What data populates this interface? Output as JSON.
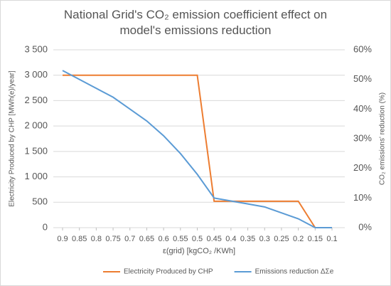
{
  "chart_data": {
    "type": "line",
    "title": "National Grid's CO₂ emission coefficient effect on model's emissions reduction",
    "x_label": "ε(grid) [kgCO₂ /KWh]",
    "y_label": "Electricity Produced by CHP [MWh(e)/year]",
    "y2_label": "CO₂ emissions' reduction (%)",
    "x": [
      0.9,
      0.85,
      0.8,
      0.75,
      0.7,
      0.65,
      0.6,
      0.55,
      0.5,
      0.45,
      0.4,
      0.35,
      0.3,
      0.25,
      0.2,
      0.15,
      0.1
    ],
    "xlim": [
      0.9,
      0.1
    ],
    "xticks": [
      0.9,
      0.85,
      0.8,
      0.75,
      0.7,
      0.65,
      0.6,
      0.55,
      0.5,
      0.45,
      0.4,
      0.35,
      0.3,
      0.25,
      0.2,
      0.15,
      0.1
    ],
    "ylim": [
      0,
      3500
    ],
    "yticks": [
      0,
      500,
      {
        "value": 1000,
        "label": "1 000"
      },
      {
        "value": 1500,
        "label": "1 500"
      },
      {
        "value": 2000,
        "label": "2 000"
      },
      {
        "value": 2500,
        "label": "2 500"
      },
      {
        "value": 3000,
        "label": "3 000"
      },
      {
        "value": 3500,
        "label": "3 500"
      }
    ],
    "y2lim": [
      0,
      60
    ],
    "y2ticks": [
      {
        "value": 0,
        "label": "0%"
      },
      {
        "value": 10,
        "label": "10%"
      },
      {
        "value": 20,
        "label": "20%"
      },
      {
        "value": 30,
        "label": "30%"
      },
      {
        "value": 40,
        "label": "40%"
      },
      {
        "value": 50,
        "label": "50%"
      },
      {
        "value": 60,
        "label": "60%"
      }
    ],
    "grid": true,
    "legend": "bottom",
    "series": [
      {
        "name": "Electricity Produced by CHP",
        "color": "#ED7D31",
        "values": [
          3000,
          3000,
          3000,
          3000,
          3000,
          3000,
          3000,
          3000,
          3000,
          520,
          520,
          520,
          520,
          520,
          520,
          0,
          null
        ]
      },
      {
        "name": "Emissions reduction ΔΣe",
        "color": "#5B9BD5",
        "axis": "y2",
        "values": [
          53,
          50,
          47,
          44,
          40,
          36,
          31,
          25,
          18,
          10,
          9,
          8,
          7,
          5,
          3,
          0,
          0
        ]
      }
    ]
  }
}
